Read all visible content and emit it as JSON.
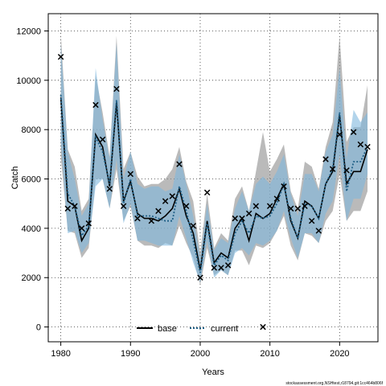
{
  "chart_data": {
    "type": "line",
    "xlabel": "Years",
    "ylabel": "Catch",
    "xlim": [
      1978.2,
      2025.5
    ],
    "ylim": [
      -600,
      12700
    ],
    "xticks": [
      1980,
      1990,
      2000,
      2010,
      2020
    ],
    "yticks": [
      0,
      2000,
      4000,
      6000,
      8000,
      10000,
      12000
    ],
    "grid": true,
    "legend_position": "bottom-center",
    "legend": [
      {
        "label": "base"
      },
      {
        "label": "current"
      }
    ],
    "colors": {
      "base_line": "#000000",
      "base_band": "#8c8c8c",
      "current_line": "#1f5f86",
      "current_band": "#7fb8de",
      "observed": "#000000"
    },
    "x": [
      1980,
      1981,
      1982,
      1983,
      1984,
      1985,
      1986,
      1987,
      1988,
      1989,
      1990,
      1991,
      1992,
      1993,
      1994,
      1995,
      1996,
      1997,
      1998,
      1999,
      2000,
      2001,
      2002,
      2003,
      2004,
      2005,
      2006,
      2007,
      2008,
      2009,
      2010,
      2011,
      2012,
      2013,
      2014,
      2015,
      2016,
      2017,
      2018,
      2019,
      2020,
      2021,
      2022,
      2023,
      2024
    ],
    "series": [
      {
        "name": "base",
        "values": [
          9300,
          5100,
          4900,
          3500,
          4000,
          7800,
          7300,
          5700,
          9100,
          5100,
          5900,
          4600,
          4400,
          4400,
          4300,
          4500,
          4800,
          5600,
          4500,
          3800,
          2300,
          4300,
          2600,
          3000,
          2800,
          4000,
          4400,
          3500,
          4600,
          4400,
          4600,
          5200,
          5800,
          4300,
          3600,
          5100,
          4900,
          4400,
          5800,
          6300,
          8600,
          5800,
          6300,
          6300,
          7200
        ],
        "lower": [
          6900,
          3900,
          3800,
          2800,
          3200,
          6000,
          6000,
          4800,
          6400,
          4300,
          4900,
          3500,
          3300,
          3300,
          3200,
          3400,
          3300,
          4100,
          3400,
          2800,
          1700,
          3200,
          2100,
          2300,
          2100,
          3100,
          3100,
          2500,
          3300,
          3200,
          3400,
          3900,
          4500,
          3300,
          2700,
          3800,
          3700,
          3400,
          4300,
          4700,
          6200,
          4300,
          4700,
          4700,
          5500
        ],
        "upper": [
          11900,
          7200,
          6500,
          4700,
          5200,
          10200,
          8700,
          6900,
          11800,
          6400,
          7100,
          6100,
          5700,
          5800,
          5800,
          6000,
          6400,
          7300,
          5900,
          5100,
          3000,
          5400,
          3200,
          3800,
          3500,
          5200,
          5700,
          4700,
          6300,
          7900,
          6300,
          6800,
          7400,
          5500,
          4800,
          6700,
          6500,
          5600,
          7300,
          8300,
          11800,
          7500,
          8100,
          8100,
          9800
        ]
      },
      {
        "name": "current",
        "values": [
          9400,
          5400,
          4900,
          3700,
          4100,
          7700,
          7100,
          5800,
          9200,
          5000,
          6000,
          4500,
          4500,
          4500,
          4400,
          4300,
          4300,
          5700,
          4700,
          3500,
          2200,
          4200,
          2500,
          2900,
          2700,
          3800,
          4300,
          3800,
          4500,
          4400,
          4500,
          5000,
          5800,
          4400,
          3600,
          5000,
          4900,
          4400,
          5800,
          6400,
          8700,
          5500,
          6700,
          6700,
          7300
        ],
        "lower": [
          7500,
          3800,
          3900,
          3000,
          3400,
          5700,
          6000,
          4800,
          6800,
          4200,
          5000,
          3500,
          3500,
          3400,
          3300,
          3300,
          3300,
          4500,
          3600,
          2600,
          1800,
          3500,
          2000,
          2300,
          2100,
          3000,
          3200,
          2900,
          3400,
          3300,
          3500,
          3900,
          4700,
          3600,
          2800,
          3800,
          3800,
          3400,
          4600,
          5100,
          7000,
          4300,
          5200,
          5200,
          6200
        ],
        "upper": [
          11500,
          7100,
          6000,
          4500,
          5000,
          10500,
          8400,
          6800,
          11500,
          6000,
          7100,
          5800,
          5600,
          5700,
          5700,
          5500,
          5600,
          7000,
          5800,
          4500,
          2800,
          5000,
          3100,
          3600,
          3400,
          4800,
          5500,
          4700,
          5800,
          6100,
          5800,
          6300,
          7000,
          5400,
          4500,
          6200,
          6200,
          5500,
          7100,
          7800,
          10500,
          6800,
          8800,
          8300,
          8700
        ]
      },
      {
        "name": "observed",
        "marker": "x",
        "x": [
          1980,
          1981,
          1982,
          1983,
          1984,
          1985,
          1986,
          1987,
          1988,
          1989,
          1990,
          1991,
          1993,
          1994,
          1995,
          1996,
          1997,
          1998,
          1999,
          2000,
          2001,
          2002,
          2003,
          2004,
          2005,
          2006,
          2007,
          2008,
          2009,
          2010,
          2011,
          2012,
          2013,
          2014,
          2015,
          2016,
          2017,
          2018,
          2019,
          2020,
          2021,
          2022,
          2023,
          2024
        ],
        "values": [
          10950,
          4800,
          4900,
          4000,
          4200,
          9000,
          7600,
          5600,
          9650,
          4900,
          6200,
          4400,
          4300,
          4700,
          5100,
          5300,
          6600,
          4900,
          4100,
          2000,
          5450,
          2400,
          2400,
          2500,
          4400,
          4400,
          4600,
          4900,
          0,
          4900,
          5200,
          5700,
          4800,
          4800,
          4900,
          4300,
          3900,
          6800,
          6400,
          7800,
          6350,
          7900,
          7400,
          7300
        ]
      }
    ]
  },
  "footnote": "stockassessment.org,NSHtest,r18794,git:1cc464b806f"
}
